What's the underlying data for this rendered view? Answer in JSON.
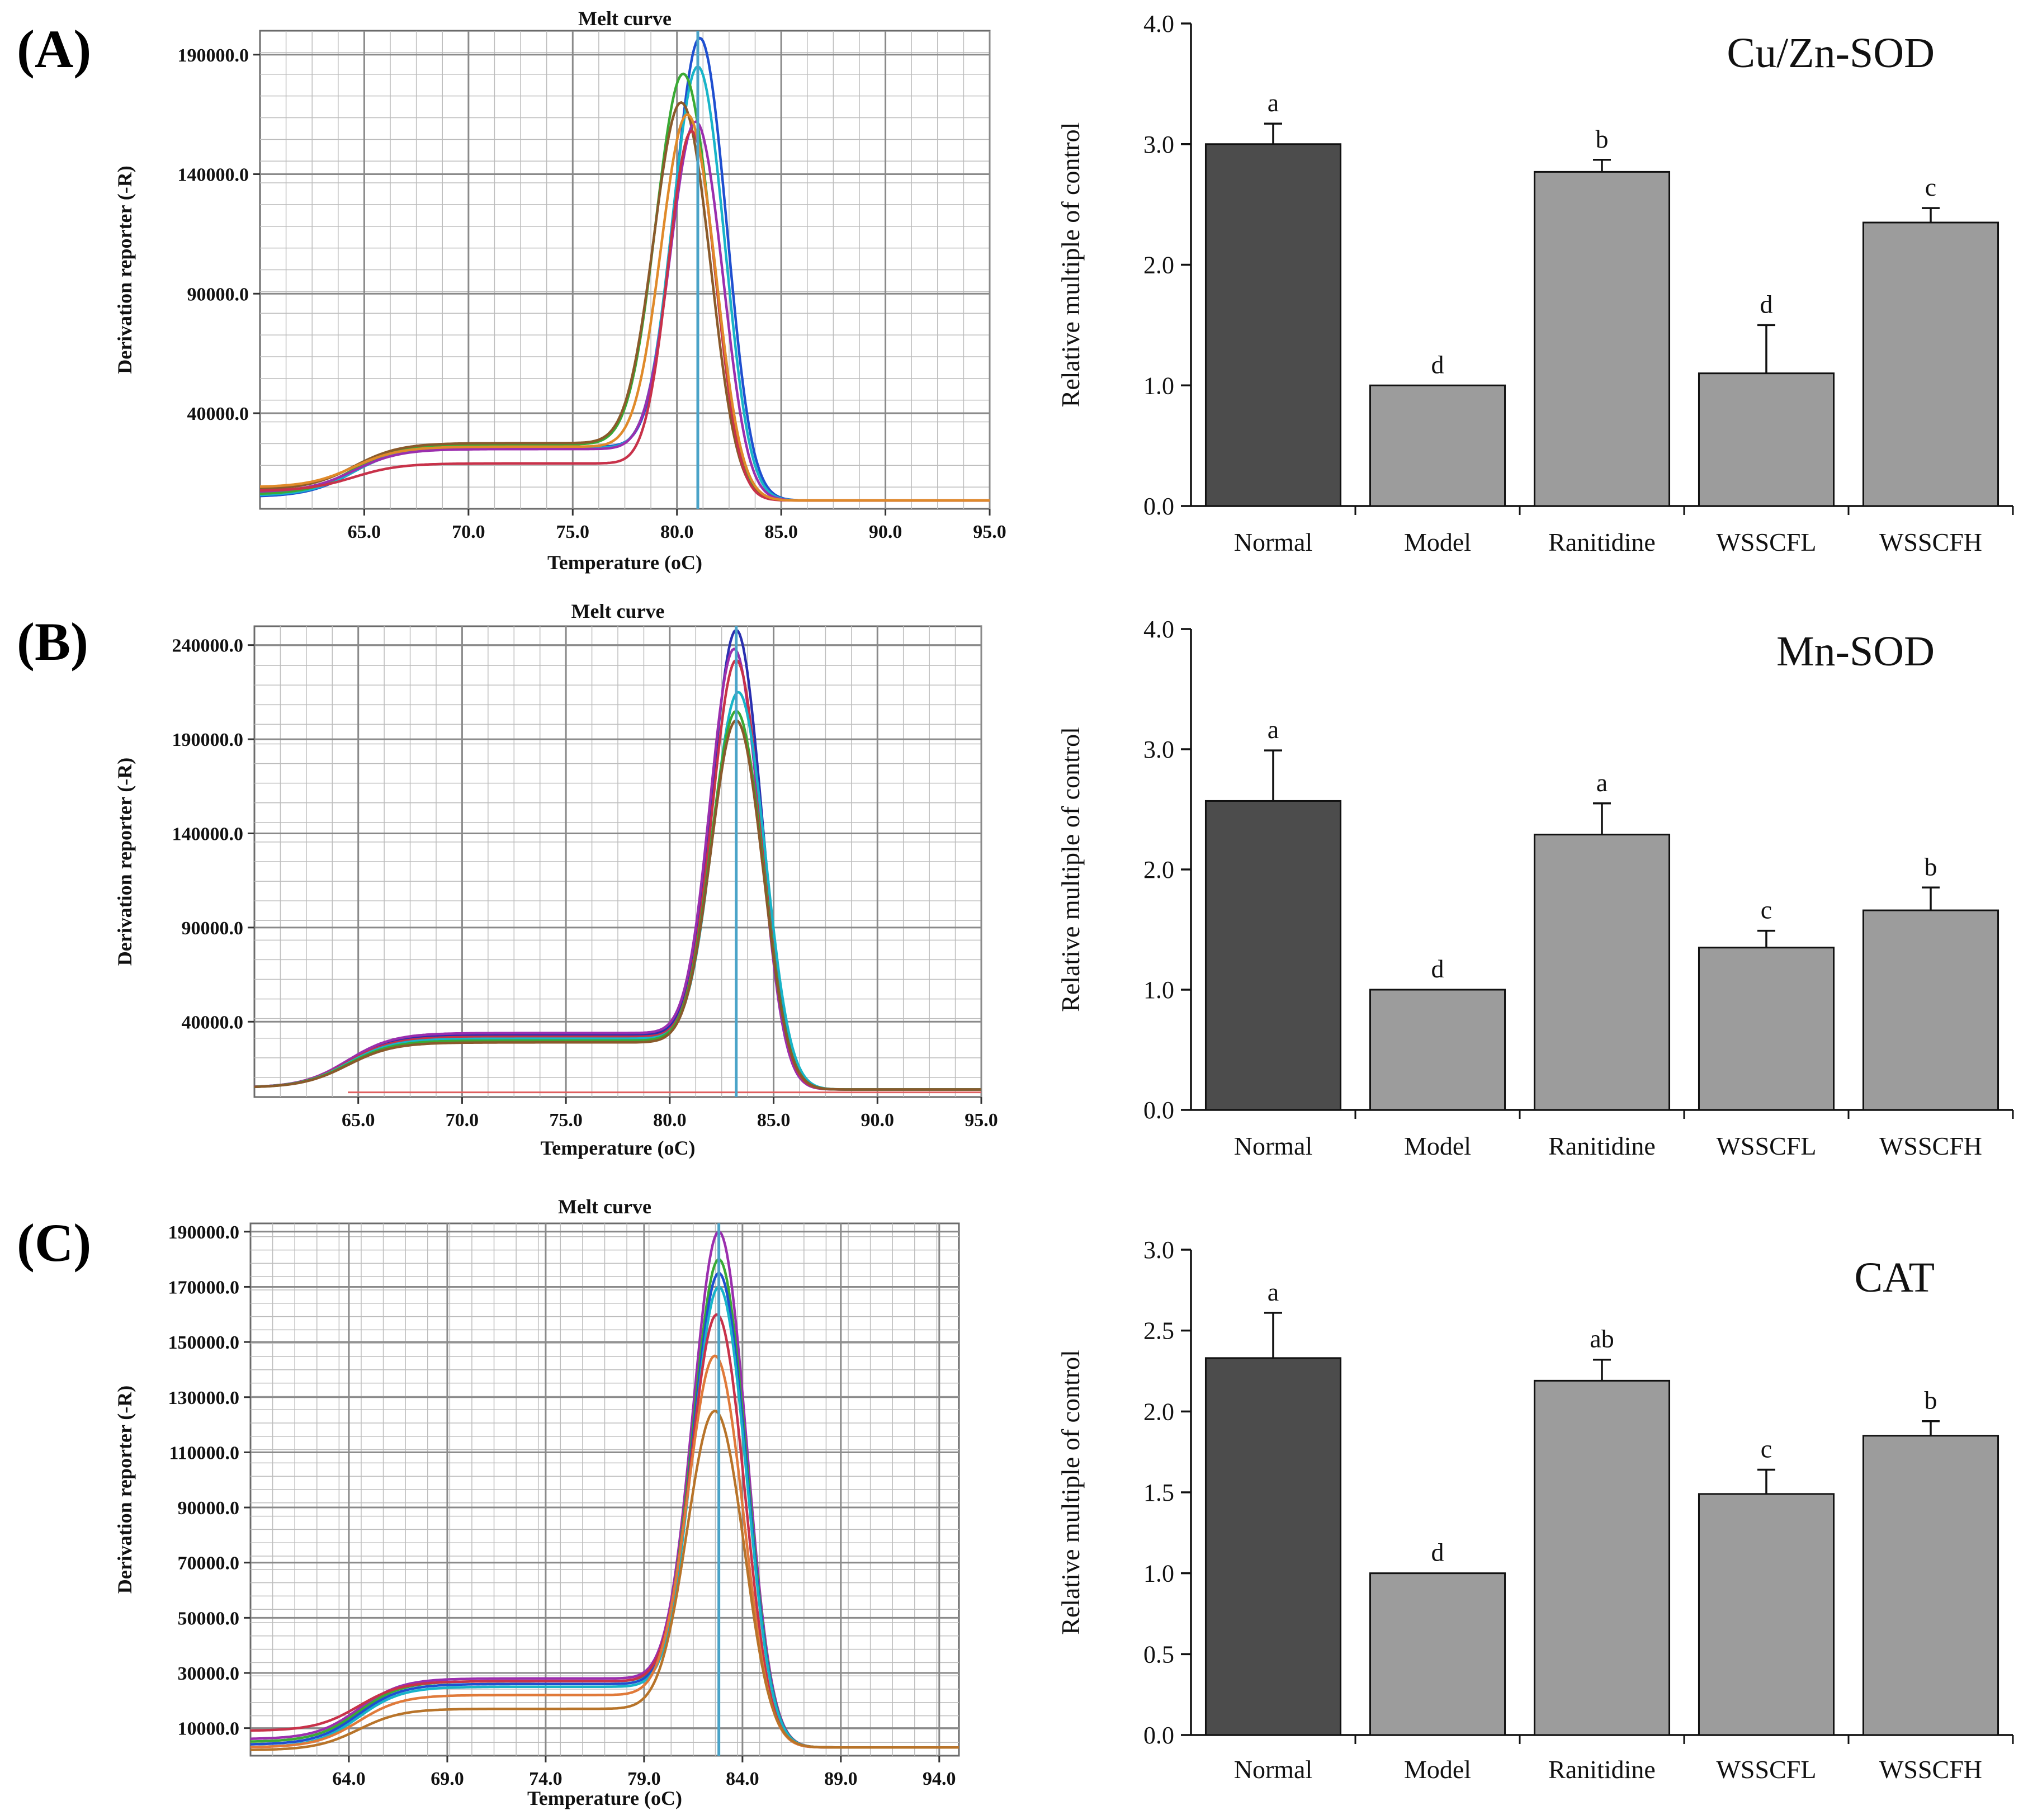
{
  "panel_labels": [
    "(A)",
    "(B)",
    "(C)"
  ],
  "chart_data": [
    {
      "id": "melt-A",
      "type": "line",
      "title": "Melt curve",
      "xlabel": "Temperature (oC)",
      "ylabel": "Derivation reporter (-R)",
      "xlim": [
        60.0,
        95.0
      ],
      "ylim": [
        0,
        200000
      ],
      "xticks": [
        "65.0",
        "70.0",
        "75.0",
        "80.0",
        "85.0",
        "90.0",
        "95.0"
      ],
      "yticks": [
        "40000.0",
        "90000.0",
        "140000.0",
        "190000.0"
      ],
      "marker_x": 81.0,
      "series": [
        {
          "name": "trace-1",
          "color": "#1f4fd0",
          "peak_x": 81.1,
          "peak_y": 197000,
          "width": 1.2,
          "base_y": 5000,
          "plateau_y": 26000,
          "tail_y": 3500
        },
        {
          "name": "trace-2",
          "color": "#18b4c8",
          "peak_x": 81.0,
          "peak_y": 185000,
          "width": 1.2,
          "base_y": 5500,
          "plateau_y": 25500,
          "tail_y": 3500
        },
        {
          "name": "trace-3",
          "color": "#3aaa35",
          "peak_x": 80.3,
          "peak_y": 182000,
          "width": 1.3,
          "base_y": 6000,
          "plateau_y": 27000,
          "tail_y": 3500
        },
        {
          "name": "trace-4",
          "color": "#8a5a2b",
          "peak_x": 80.2,
          "peak_y": 170000,
          "width": 1.3,
          "base_y": 8000,
          "plateau_y": 27500,
          "tail_y": 3500
        },
        {
          "name": "trace-5",
          "color": "#9b2fae",
          "peak_x": 80.9,
          "peak_y": 162000,
          "width": 1.2,
          "base_y": 7000,
          "plateau_y": 25000,
          "tail_y": 3500
        },
        {
          "name": "trace-6",
          "color": "#c8324a",
          "peak_x": 80.7,
          "peak_y": 158000,
          "width": 1.1,
          "base_y": 7500,
          "plateau_y": 19000,
          "tail_y": 3500
        },
        {
          "name": "trace-7",
          "color": "#e08a2a",
          "peak_x": 80.5,
          "peak_y": 165000,
          "width": 1.25,
          "base_y": 9000,
          "plateau_y": 26000,
          "tail_y": 3500
        }
      ]
    },
    {
      "id": "melt-B",
      "type": "line",
      "title": "Melt curve",
      "xlabel": "Temperature (oC)",
      "ylabel": "Derivation reporter (-R)",
      "xlim": [
        60.0,
        95.0
      ],
      "ylim": [
        0,
        250000
      ],
      "xticks": [
        "65.0",
        "70.0",
        "75.0",
        "80.0",
        "85.0",
        "90.0",
        "95.0"
      ],
      "yticks": [
        "40000.0",
        "90000.0",
        "140000.0",
        "190000.0",
        "240000.0"
      ],
      "marker_x": 83.2,
      "series": [
        {
          "name": "trace-1",
          "color": "#2a2fb0",
          "peak_x": 83.2,
          "peak_y": 248000,
          "width": 1.15,
          "base_y": 5000,
          "plateau_y": 33000,
          "tail_y": 4000
        },
        {
          "name": "trace-2",
          "color": "#9b2fae",
          "peak_x": 83.1,
          "peak_y": 238000,
          "width": 1.15,
          "base_y": 5000,
          "plateau_y": 34000,
          "tail_y": 4000
        },
        {
          "name": "trace-3",
          "color": "#c8324a",
          "peak_x": 83.2,
          "peak_y": 232000,
          "width": 1.15,
          "base_y": 5000,
          "plateau_y": 32000,
          "tail_y": 4000
        },
        {
          "name": "trace-4",
          "color": "#18b4c8",
          "peak_x": 83.3,
          "peak_y": 215000,
          "width": 1.2,
          "base_y": 5000,
          "plateau_y": 31000,
          "tail_y": 4000
        },
        {
          "name": "trace-5",
          "color": "#3aaa35",
          "peak_x": 83.2,
          "peak_y": 205000,
          "width": 1.2,
          "base_y": 5000,
          "plateau_y": 30000,
          "tail_y": 4000
        },
        {
          "name": "trace-6",
          "color": "#8a5a2b",
          "peak_x": 83.2,
          "peak_y": 200000,
          "width": 1.2,
          "base_y": 5000,
          "plateau_y": 29000,
          "tail_y": 4000
        }
      ],
      "flat_line": {
        "color": "#e06060",
        "y": 2500
      }
    },
    {
      "id": "melt-C",
      "type": "line",
      "title": "Melt curve",
      "xlabel": "Temperature (oC)",
      "ylabel": "Derivation reporter (-R)",
      "xlim": [
        59.0,
        95.0
      ],
      "ylim": [
        0,
        193000
      ],
      "xticks": [
        "64.0",
        "69.0",
        "74.0",
        "79.0",
        "84.0",
        "89.0",
        "94.0"
      ],
      "yticks": [
        "10000.0",
        "30000.0",
        "50000.0",
        "70000.0",
        "90000.0",
        "110000.0",
        "130000.0",
        "150000.0",
        "170000.0",
        "190000.0"
      ],
      "marker_x": 82.8,
      "series": [
        {
          "name": "trace-1",
          "color": "#9b2fae",
          "peak_x": 82.8,
          "peak_y": 190000,
          "width": 1.3,
          "base_y": 6000,
          "plateau_y": 28000,
          "tail_y": 3000
        },
        {
          "name": "trace-2",
          "color": "#3aaa35",
          "peak_x": 82.8,
          "peak_y": 180000,
          "width": 1.3,
          "base_y": 5000,
          "plateau_y": 27000,
          "tail_y": 3000
        },
        {
          "name": "trace-3",
          "color": "#1f4fd0",
          "peak_x": 82.8,
          "peak_y": 175000,
          "width": 1.3,
          "base_y": 4000,
          "plateau_y": 26000,
          "tail_y": 3000
        },
        {
          "name": "trace-4",
          "color": "#18b4c8",
          "peak_x": 82.8,
          "peak_y": 170000,
          "width": 1.3,
          "base_y": 3000,
          "plateau_y": 25000,
          "tail_y": 3000
        },
        {
          "name": "trace-5",
          "color": "#c8324a",
          "peak_x": 82.7,
          "peak_y": 160000,
          "width": 1.3,
          "base_y": 9000,
          "plateau_y": 27000,
          "tail_y": 3000
        },
        {
          "name": "trace-6",
          "color": "#e07a3a",
          "peak_x": 82.6,
          "peak_y": 145000,
          "width": 1.35,
          "base_y": 3000,
          "plateau_y": 22000,
          "tail_y": 3000
        },
        {
          "name": "trace-7",
          "color": "#b8742a",
          "peak_x": 82.6,
          "peak_y": 125000,
          "width": 1.4,
          "base_y": 2000,
          "plateau_y": 17000,
          "tail_y": 3000
        }
      ]
    },
    {
      "id": "bar-A",
      "type": "bar",
      "title": "Cu/Zn-SOD",
      "xlabel": "",
      "ylabel": "Relative  multiple of control",
      "ylim": [
        0.0,
        4.0
      ],
      "yticks": [
        "0.0",
        "1.0",
        "2.0",
        "3.0",
        "4.0"
      ],
      "categories": [
        "Normal",
        "Model",
        "Ranitidine",
        "WSSCFL",
        "WSSCFH"
      ],
      "values": [
        3.0,
        1.0,
        2.77,
        1.1,
        2.35
      ],
      "errors": [
        0.17,
        0.0,
        0.1,
        0.4,
        0.12
      ],
      "significance": [
        "a",
        "d",
        "b",
        "d",
        "c"
      ],
      "colors": [
        "#4c4c4c",
        "#9c9c9c",
        "#9c9c9c",
        "#9c9c9c",
        "#9c9c9c"
      ]
    },
    {
      "id": "bar-B",
      "type": "bar",
      "title": "Mn-SOD",
      "xlabel": "",
      "ylabel": "Relative multiple of control",
      "ylim": [
        0.0,
        4.0
      ],
      "yticks": [
        "0.0",
        "1.0",
        "2.0",
        "3.0",
        "4.0"
      ],
      "categories": [
        "Normal",
        "Model",
        "Ranitidine",
        "WSSCFL",
        "WSSCFH"
      ],
      "values": [
        2.57,
        1.0,
        2.29,
        1.35,
        1.66
      ],
      "errors": [
        0.42,
        0.0,
        0.26,
        0.14,
        0.19
      ],
      "significance": [
        "a",
        "d",
        "a",
        "c",
        "b"
      ],
      "colors": [
        "#4c4c4c",
        "#9c9c9c",
        "#9c9c9c",
        "#9c9c9c",
        "#9c9c9c"
      ]
    },
    {
      "id": "bar-C",
      "type": "bar",
      "title": "CAT",
      "xlabel": "",
      "ylabel": "Relative multiple of control",
      "ylim": [
        0.0,
        3.0
      ],
      "yticks": [
        "0.0",
        "0.5",
        "1.0",
        "1.5",
        "2.0",
        "2.5",
        "3.0"
      ],
      "categories": [
        "Normal",
        "Model",
        "Ranitidine",
        "WSSCFL",
        "WSSCFH"
      ],
      "values": [
        2.33,
        1.0,
        2.19,
        1.49,
        1.85
      ],
      "errors": [
        0.28,
        0.0,
        0.13,
        0.15,
        0.09
      ],
      "significance": [
        "a",
        "d",
        "ab",
        "c",
        "b"
      ],
      "colors": [
        "#4c4c4c",
        "#9c9c9c",
        "#9c9c9c",
        "#9c9c9c",
        "#9c9c9c"
      ]
    }
  ]
}
